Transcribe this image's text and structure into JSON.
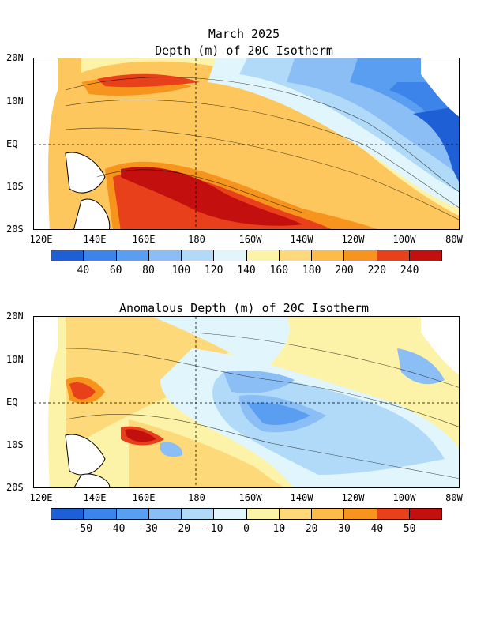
{
  "top": {
    "title_line1": "March 2025",
    "title_line2": "Depth (m) of 20C Isotherm",
    "colorbar_labels": [
      "40",
      "60",
      "80",
      "100",
      "120",
      "140",
      "160",
      "180",
      "200",
      "220",
      "240"
    ],
    "colorbar_colors": [
      "#1f5fd6",
      "#3c84ea",
      "#5a9ef2",
      "#8cbef6",
      "#b0daf8",
      "#e0f6fc",
      "#fdf3a8",
      "#fdd97a",
      "#fdbb4a",
      "#f7941d",
      "#e8401a",
      "#c40f0f"
    ]
  },
  "bottom": {
    "title": "Anomalous Depth (m) of 20C Isotherm",
    "colorbar_labels": [
      "-50",
      "-40",
      "-30",
      "-20",
      "-10",
      "0",
      "10",
      "20",
      "30",
      "40",
      "50"
    ],
    "colorbar_colors": [
      "#1f5fd6",
      "#3c84ea",
      "#5a9ef2",
      "#8cbef6",
      "#b0daf8",
      "#e0f6fc",
      "#fdf3a8",
      "#fdd97a",
      "#fdbb4a",
      "#f7941d",
      "#e8401a",
      "#c40f0f"
    ]
  },
  "axes": {
    "lat_labels": [
      "20N",
      "10N",
      "EQ",
      "10S",
      "20S"
    ],
    "lon_labels": [
      "120E",
      "140E",
      "160E",
      "180",
      "160W",
      "140W",
      "120W",
      "100W",
      "80W"
    ]
  }
}
